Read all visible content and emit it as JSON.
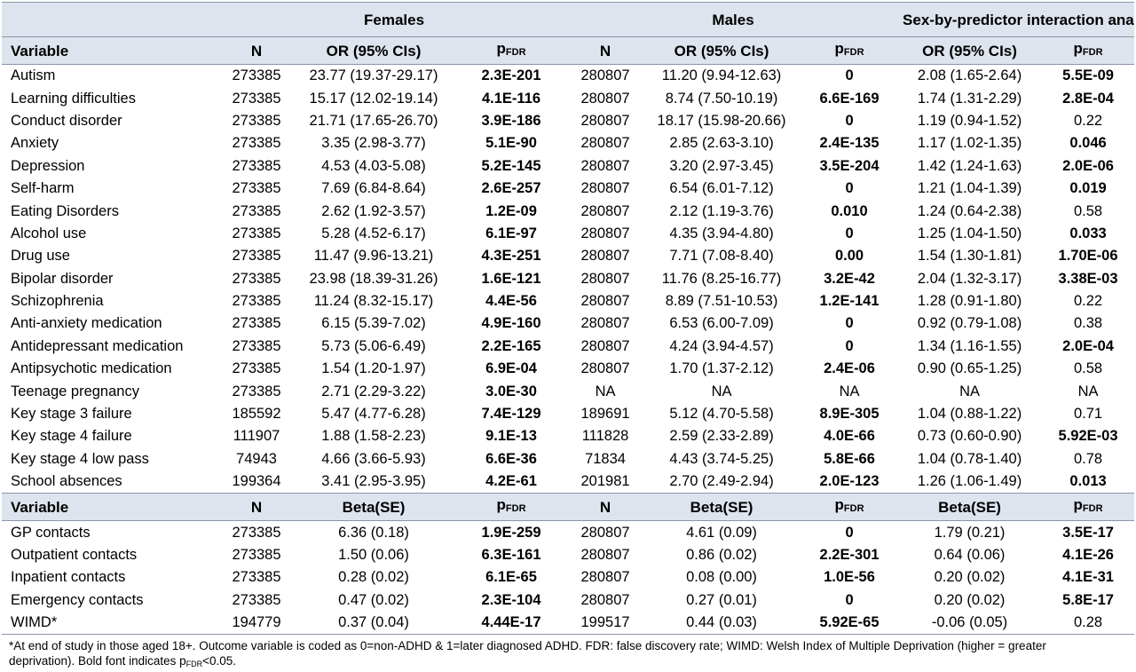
{
  "groups": {
    "blank": "",
    "females": "Females",
    "males": "Males",
    "interaction": "Sex-by-predictor interaction analysis"
  },
  "header1": {
    "variable": "Variable",
    "n": "N",
    "or": "OR (95% CIs)",
    "p": "p",
    "p_sub": "FDR"
  },
  "header2": {
    "variable": "Variable",
    "n": "N",
    "beta": "Beta(SE)",
    "p": "p",
    "p_sub": "FDR"
  },
  "or_rows": [
    {
      "variable": "Autism",
      "f_n": "273385",
      "f_or": "23.77 (19.37-29.17)",
      "f_p": "2.3E-201",
      "f_bold": true,
      "m_n": "280807",
      "m_or": "11.20 (9.94-12.63)",
      "m_p": "0",
      "m_bold": true,
      "i_or": "2.08 (1.65-2.64)",
      "i_p": "5.5E-09",
      "i_bold": true
    },
    {
      "variable": "Learning difficulties",
      "f_n": "273385",
      "f_or": "15.17 (12.02-19.14)",
      "f_p": "4.1E-116",
      "f_bold": true,
      "m_n": "280807",
      "m_or": "8.74 (7.50-10.19)",
      "m_p": "6.6E-169",
      "m_bold": true,
      "i_or": "1.74 (1.31-2.29)",
      "i_p": "2.8E-04",
      "i_bold": true
    },
    {
      "variable": "Conduct disorder",
      "f_n": "273385",
      "f_or": "21.71 (17.65-26.70)",
      "f_p": "3.9E-186",
      "f_bold": true,
      "m_n": "280807",
      "m_or": "18.17 (15.98-20.66)",
      "m_p": "0",
      "m_bold": true,
      "i_or": "1.19 (0.94-1.52)",
      "i_p": "0.22",
      "i_bold": false
    },
    {
      "variable": "Anxiety",
      "f_n": "273385",
      "f_or": "3.35 (2.98-3.77)",
      "f_p": "5.1E-90",
      "f_bold": true,
      "m_n": "280807",
      "m_or": "2.85 (2.63-3.10)",
      "m_p": "2.4E-135",
      "m_bold": true,
      "i_or": "1.17 (1.02-1.35)",
      "i_p": "0.046",
      "i_bold": true
    },
    {
      "variable": "Depression",
      "f_n": "273385",
      "f_or": "4.53 (4.03-5.08)",
      "f_p": "5.2E-145",
      "f_bold": true,
      "m_n": "280807",
      "m_or": "3.20 (2.97-3.45)",
      "m_p": "3.5E-204",
      "m_bold": true,
      "i_or": "1.42 (1.24-1.63)",
      "i_p": "2.0E-06",
      "i_bold": true
    },
    {
      "variable": "Self-harm",
      "f_n": "273385",
      "f_or": "7.69 (6.84-8.64)",
      "f_p": "2.6E-257",
      "f_bold": true,
      "m_n": "280807",
      "m_or": "6.54 (6.01-7.12)",
      "m_p": "0",
      "m_bold": true,
      "i_or": "1.21 (1.04-1.39)",
      "i_p": "0.019",
      "i_bold": true
    },
    {
      "variable": "Eating Disorders",
      "f_n": "273385",
      "f_or": "2.62 (1.92-3.57)",
      "f_p": "1.2E-09",
      "f_bold": true,
      "m_n": "280807",
      "m_or": "2.12 (1.19-3.76)",
      "m_p": "0.010",
      "m_bold": true,
      "i_or": "1.24 (0.64-2.38)",
      "i_p": "0.58",
      "i_bold": false
    },
    {
      "variable": "Alcohol use",
      "f_n": "273385",
      "f_or": "5.28 (4.52-6.17)",
      "f_p": "6.1E-97",
      "f_bold": true,
      "m_n": "280807",
      "m_or": "4.35 (3.94-4.80)",
      "m_p": "0",
      "m_bold": true,
      "i_or": "1.25 (1.04-1.50)",
      "i_p": "0.033",
      "i_bold": true
    },
    {
      "variable": "Drug use",
      "f_n": "273385",
      "f_or": "11.47 (9.96-13.21)",
      "f_p": "4.3E-251",
      "f_bold": true,
      "m_n": "280807",
      "m_or": "7.71 (7.08-8.40)",
      "m_p": "0.00",
      "m_bold": true,
      "i_or": "1.54 (1.30-1.81)",
      "i_p": "1.70E-06",
      "i_bold": true
    },
    {
      "variable": "Bipolar disorder",
      "f_n": "273385",
      "f_or": "23.98 (18.39-31.26)",
      "f_p": "1.6E-121",
      "f_bold": true,
      "m_n": "280807",
      "m_or": "11.76 (8.25-16.77)",
      "m_p": "3.2E-42",
      "m_bold": true,
      "i_or": "2.04 (1.32-3.17)",
      "i_p": "3.38E-03",
      "i_bold": true
    },
    {
      "variable": "Schizophrenia",
      "f_n": "273385",
      "f_or": "11.24 (8.32-15.17)",
      "f_p": "4.4E-56",
      "f_bold": true,
      "m_n": "280807",
      "m_or": "8.89 (7.51-10.53)",
      "m_p": "1.2E-141",
      "m_bold": true,
      "i_or": "1.28 (0.91-1.80)",
      "i_p": "0.22",
      "i_bold": false
    },
    {
      "variable": "Anti-anxiety medication",
      "f_n": "273385",
      "f_or": "6.15 (5.39-7.02)",
      "f_p": "4.9E-160",
      "f_bold": true,
      "m_n": "280807",
      "m_or": "6.53 (6.00-7.09)",
      "m_p": "0",
      "m_bold": true,
      "i_or": "0.92 (0.79-1.08)",
      "i_p": "0.38",
      "i_bold": false
    },
    {
      "variable": "Antidepressant medication",
      "f_n": "273385",
      "f_or": "5.73 (5.06-6.49)",
      "f_p": "2.2E-165",
      "f_bold": true,
      "m_n": "280807",
      "m_or": "4.24 (3.94-4.57)",
      "m_p": "0",
      "m_bold": true,
      "i_or": "1.34 (1.16-1.55)",
      "i_p": "2.0E-04",
      "i_bold": true
    },
    {
      "variable": "Antipsychotic medication",
      "f_n": "273385",
      "f_or": "1.54 (1.20-1.97)",
      "f_p": "6.9E-04",
      "f_bold": true,
      "m_n": "280807",
      "m_or": "1.70 (1.37-2.12)",
      "m_p": "2.4E-06",
      "m_bold": true,
      "i_or": "0.90 (0.65-1.25)",
      "i_p": "0.58",
      "i_bold": false
    },
    {
      "variable": "Teenage pregnancy",
      "f_n": "273385",
      "f_or": "2.71 (2.29-3.22)",
      "f_p": "3.0E-30",
      "f_bold": true,
      "m_n": "NA",
      "m_or": "NA",
      "m_p": "NA",
      "m_bold": false,
      "i_or": "NA",
      "i_p": "NA",
      "i_bold": false
    },
    {
      "variable": "Key stage 3 failure",
      "f_n": "185592",
      "f_or": "5.47 (4.77-6.28)",
      "f_p": "7.4E-129",
      "f_bold": true,
      "m_n": "189691",
      "m_or": "5.12 (4.70-5.58)",
      "m_p": "8.9E-305",
      "m_bold": true,
      "i_or": "1.04 (0.88-1.22)",
      "i_p": "0.71",
      "i_bold": false
    },
    {
      "variable": "Key stage 4 failure",
      "f_n": "111907",
      "f_or": "1.88 (1.58-2.23)",
      "f_p": "9.1E-13",
      "f_bold": true,
      "m_n": "111828",
      "m_or": "2.59 (2.33-2.89)",
      "m_p": "4.0E-66",
      "m_bold": true,
      "i_or": "0.73 (0.60-0.90)",
      "i_p": "5.92E-03",
      "i_bold": true
    },
    {
      "variable": "Key stage 4 low pass",
      "f_n": "74943",
      "f_or": "4.66 (3.66-5.93)",
      "f_p": "6.6E-36",
      "f_bold": true,
      "m_n": "71834",
      "m_or": "4.43 (3.74-5.25)",
      "m_p": "5.8E-66",
      "m_bold": true,
      "i_or": "1.04 (0.78-1.40)",
      "i_p": "0.78",
      "i_bold": false
    },
    {
      "variable": "School absences",
      "f_n": "199364",
      "f_or": "3.41 (2.95-3.95)",
      "f_p": "4.2E-61",
      "f_bold": true,
      "m_n": "201981",
      "m_or": "2.70 (2.49-2.94)",
      "m_p": "2.0E-123",
      "m_bold": true,
      "i_or": "1.26 (1.06-1.49)",
      "i_p": "0.013",
      "i_bold": true
    }
  ],
  "beta_rows": [
    {
      "variable": "GP contacts",
      "f_n": "273385",
      "f_or": "6.36 (0.18)",
      "f_p": "1.9E-259",
      "f_bold": true,
      "m_n": "280807",
      "m_or": "4.61 (0.09)",
      "m_p": "0",
      "m_bold": true,
      "i_or": "1.79 (0.21)",
      "i_p": "3.5E-17",
      "i_bold": true
    },
    {
      "variable": "Outpatient contacts",
      "f_n": "273385",
      "f_or": "1.50 (0.06)",
      "f_p": "6.3E-161",
      "f_bold": true,
      "m_n": "280807",
      "m_or": "0.86 (0.02)",
      "m_p": "2.2E-301",
      "m_bold": true,
      "i_or": "0.64 (0.06)",
      "i_p": "4.1E-26",
      "i_bold": true
    },
    {
      "variable": "Inpatient contacts",
      "f_n": "273385",
      "f_or": "0.28 (0.02)",
      "f_p": "6.1E-65",
      "f_bold": true,
      "m_n": "280807",
      "m_or": "0.08 (0.00)",
      "m_p": "1.0E-56",
      "m_bold": true,
      "i_or": "0.20 (0.02)",
      "i_p": "4.1E-31",
      "i_bold": true
    },
    {
      "variable": "Emergency contacts",
      "f_n": "273385",
      "f_or": "0.47 (0.02)",
      "f_p": "2.3E-104",
      "f_bold": true,
      "m_n": "280807",
      "m_or": "0.27 (0.01)",
      "m_p": "0",
      "m_bold": true,
      "i_or": "0.20 (0.02)",
      "i_p": "5.8E-17",
      "i_bold": true
    },
    {
      "variable": "WIMD*",
      "f_n": "194779",
      "f_or": "0.37 (0.04)",
      "f_p": "4.44E-17",
      "f_bold": true,
      "m_n": "199517",
      "m_or": "0.44 (0.03)",
      "m_p": "5.92E-65",
      "m_bold": true,
      "i_or": "-0.06 (0.05)",
      "i_p": "0.28",
      "i_bold": false
    }
  ],
  "footnote": {
    "line1": "*At end of study in those aged 18+. Outcome variable is coded as 0=non-ADHD & 1=later diagnosed ADHD. FDR: false discovery rate; WIMD: Welsh Index of Multiple Deprivation (higher = greater",
    "line2a": "deprivation). Bold font indicates p",
    "line2_sub": "FDR",
    "line2b": "<0.05."
  },
  "colors": {
    "header_bg": "#dde4ee",
    "rule": "#8a96a8"
  }
}
